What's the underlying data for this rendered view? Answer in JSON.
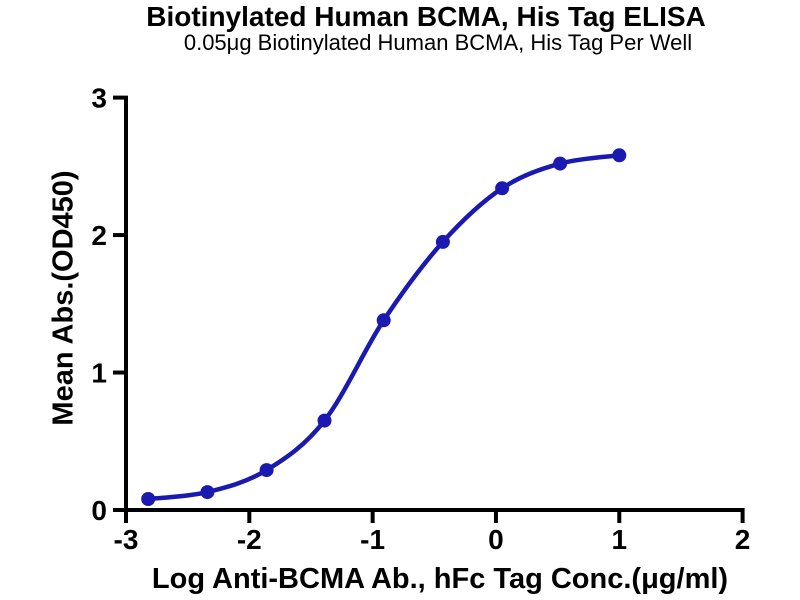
{
  "header": {
    "title": "Biotinylated Human BCMA, His Tag ELISA",
    "subtitle": "0.05μg Biotinylated Human BCMA, His Tag Per Well"
  },
  "colors": {
    "curve": "#1a1ab0",
    "axis": "#000000",
    "text": "#000000",
    "background": "#ffffff"
  },
  "chart_data": {
    "type": "line",
    "curve_style": "sigmoidal dose-response fit with filled circle markers",
    "title": "Biotinylated Human BCMA, His Tag ELISA",
    "subtitle": "0.05μg Biotinylated Human BCMA, His Tag Per Well",
    "xlabel": "Log Anti-BCMA Ab., hFc Tag Conc.(μg/ml)",
    "ylabel": "Mean Abs.(OD450)",
    "xlim": [
      -3,
      2
    ],
    "ylim": [
      0,
      3
    ],
    "x_ticks": [
      -3,
      -2,
      -1,
      0,
      1,
      2
    ],
    "y_ticks": [
      0,
      1,
      2,
      3
    ],
    "grid": false,
    "legend_position": "none",
    "series": [
      {
        "name": "Anti-BCMA Ab., hFc Tag",
        "color": "#1a1ab0",
        "x": [
          -2.82,
          -2.34,
          -1.86,
          -1.39,
          -0.91,
          -0.43,
          0.05,
          0.52,
          1.0
        ],
        "y": [
          0.08,
          0.13,
          0.29,
          0.65,
          1.38,
          1.95,
          2.34,
          2.52,
          2.58
        ]
      }
    ]
  }
}
